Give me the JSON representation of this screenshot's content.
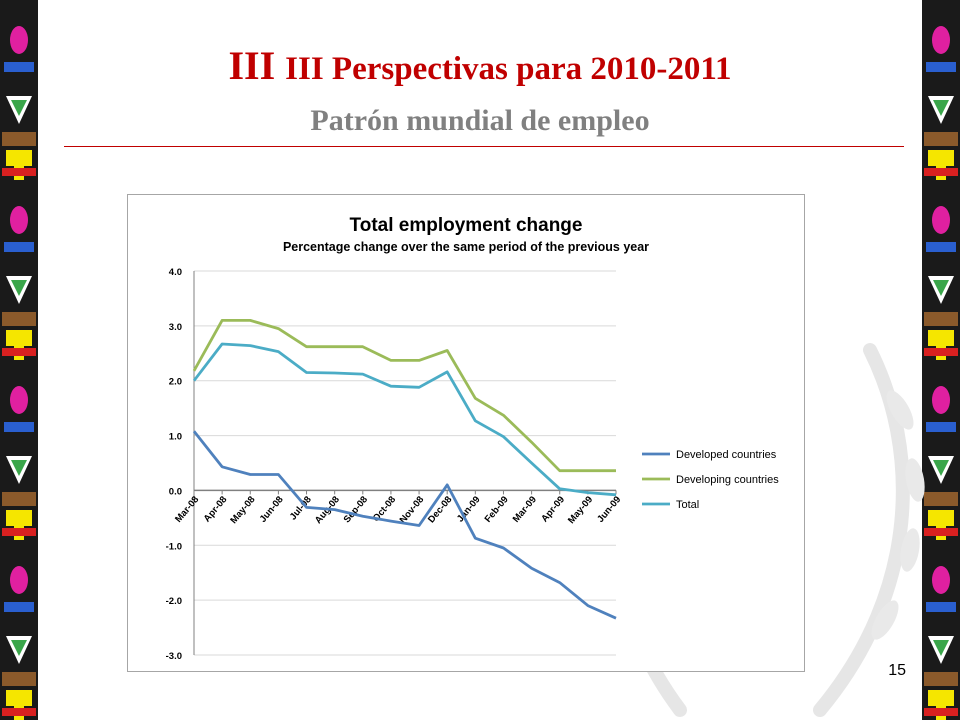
{
  "slide": {
    "title_prefix": "III",
    "title_main": "III Perspectivas para 2010-2011",
    "subtitle": "Patrón mundial de empleo",
    "page_number": "15",
    "title_color": "#c00000",
    "subtitle_color": "#808080"
  },
  "chart_data": {
    "type": "line",
    "title": "Total employment change",
    "subtitle": "Percentage change over the same period of the previous year",
    "categories": [
      "Mar-08",
      "Apr-08",
      "May-08",
      "Jun-08",
      "Jul-08",
      "Aug-08",
      "Sep-08",
      "Oct-08",
      "Nov-08",
      "Dec-08",
      "Jan-09",
      "Feb-09",
      "Mar-09",
      "Apr-09",
      "May-09",
      "Jun-09"
    ],
    "ylim": [
      -3.0,
      4.0
    ],
    "yticks": [
      "4.0",
      "3.0",
      "2.0",
      "1.0",
      "0.0",
      "-1.0",
      "-2.0",
      "-3.0"
    ],
    "grid": true,
    "legend_position": "right",
    "series": [
      {
        "name": "Developed countries",
        "color": "#4f81bd",
        "values": [
          1.08,
          0.43,
          0.29,
          0.29,
          -0.31,
          -0.35,
          -0.47,
          -0.56,
          -0.64,
          0.1,
          -0.87,
          -1.05,
          -1.42,
          -1.68,
          -2.1,
          -2.33
        ]
      },
      {
        "name": "Developing countries",
        "color": "#9bbb59",
        "values": [
          2.18,
          3.1,
          3.1,
          2.95,
          2.62,
          2.62,
          2.62,
          2.37,
          2.37,
          2.55,
          1.68,
          1.37,
          0.88,
          0.36,
          0.36,
          0.36
        ]
      },
      {
        "name": "Total",
        "color": "#4bacc6",
        "values": [
          2.0,
          2.67,
          2.64,
          2.53,
          2.15,
          2.14,
          2.12,
          1.9,
          1.88,
          2.16,
          1.27,
          0.98,
          0.5,
          0.03,
          -0.04,
          -0.08
        ]
      }
    ]
  }
}
